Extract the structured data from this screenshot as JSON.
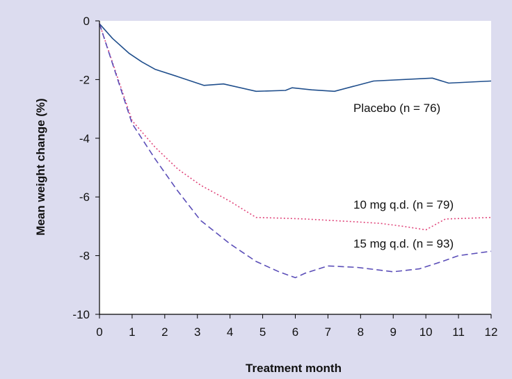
{
  "chart_data": {
    "type": "line",
    "title": "",
    "xlabel": "Treatment month",
    "ylabel": "Mean weight change (%)",
    "xlim": [
      0,
      12
    ],
    "ylim": [
      -10,
      0
    ],
    "x_ticks": [
      "0",
      "1",
      "2",
      "3",
      "4",
      "5",
      "6",
      "7",
      "8",
      "9",
      "10",
      "11",
      "12"
    ],
    "y_ticks": [
      "0",
      "-2",
      "-4",
      "-6",
      "-8",
      "-10"
    ],
    "grid": false,
    "legend": "inline labels",
    "series": [
      {
        "name": "Placebo (n = 76)",
        "style": "solid",
        "color": "#1f4e8c",
        "x": [
          0,
          0.4,
          0.9,
          1.3,
          1.7,
          2.4,
          3.2,
          3.8,
          4.8,
          5.7,
          5.9,
          6.5,
          7.2,
          8.4,
          10.2,
          10.7,
          12
        ],
        "y": [
          -0.1,
          -0.6,
          -1.1,
          -1.4,
          -1.65,
          -1.9,
          -2.2,
          -2.15,
          -2.4,
          -2.37,
          -2.28,
          -2.35,
          -2.4,
          -2.05,
          -1.95,
          -2.12,
          -2.05
        ]
      },
      {
        "name": "10 mg q.d. (n = 79)",
        "style": "dotted",
        "color": "#e0457a",
        "x": [
          0,
          1,
          1.7,
          2.4,
          3.1,
          4,
          4.8,
          5.5,
          6.3,
          7.1,
          7.9,
          8.6,
          9.3,
          10,
          10.6,
          12
        ],
        "y": [
          -0.1,
          -3.4,
          -4.3,
          -5.05,
          -5.6,
          -6.15,
          -6.7,
          -6.72,
          -6.75,
          -6.8,
          -6.85,
          -6.9,
          -7.0,
          -7.12,
          -6.75,
          -6.7
        ]
      },
      {
        "name": "15 mg q.d. (n = 93)",
        "style": "dashed",
        "color": "#5b4eb8",
        "x": [
          0,
          1,
          1.7,
          2.4,
          3.1,
          4,
          4.8,
          5.5,
          6,
          6.3,
          7,
          7.9,
          8.5,
          9,
          9.8,
          10.5,
          11,
          12
        ],
        "y": [
          -0.1,
          -3.5,
          -4.7,
          -5.8,
          -6.8,
          -7.6,
          -8.2,
          -8.55,
          -8.75,
          -8.6,
          -8.35,
          -8.4,
          -8.48,
          -8.55,
          -8.45,
          -8.2,
          -8.0,
          -7.85
        ]
      }
    ]
  }
}
